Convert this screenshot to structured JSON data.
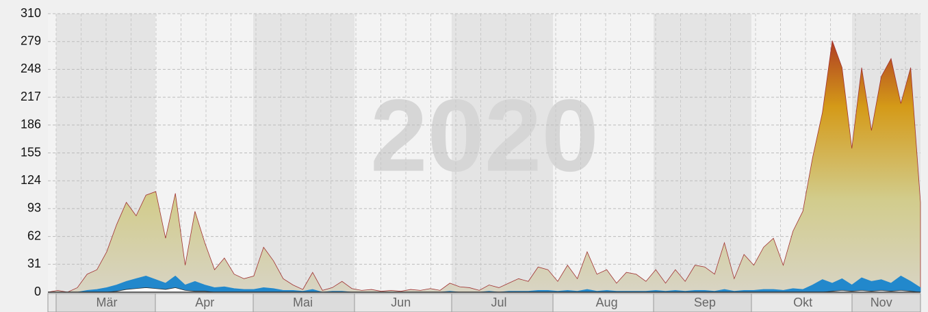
{
  "chart_data": {
    "type": "area",
    "watermark": "2020",
    "categories": [
      null,
      null,
      null,
      null,
      null,
      null,
      "Mär",
      null,
      null,
      null,
      null,
      null,
      null,
      null,
      null,
      null,
      "Apr",
      null,
      null,
      null,
      null,
      null,
      null,
      null,
      null,
      null,
      "Mai",
      null,
      null,
      null,
      null,
      null,
      null,
      null,
      null,
      null,
      "Jun",
      null,
      null,
      null,
      null,
      null,
      null,
      null,
      null,
      null,
      "Jul",
      null,
      null,
      null,
      null,
      null,
      null,
      null,
      null,
      null,
      null,
      "Aug",
      null,
      null,
      null,
      null,
      null,
      null,
      null,
      null,
      null,
      "Sep",
      null,
      null,
      null,
      null,
      null,
      null,
      null,
      null,
      null,
      "Okt",
      null,
      null,
      null,
      null,
      null,
      null,
      null,
      "Nov",
      null,
      null,
      null,
      null
    ],
    "series": [
      {
        "color": "#a03030",
        "fill": [
          "#d8d4c4",
          "#d2cc8c",
          "#d49a18",
          "#a01828"
        ],
        "values": [
          0,
          2,
          0,
          5,
          20,
          25,
          45,
          75,
          100,
          85,
          108,
          112,
          60,
          110,
          30,
          90,
          55,
          25,
          38,
          20,
          15,
          18,
          50,
          35,
          15,
          8,
          3,
          22,
          2,
          5,
          12,
          4,
          2,
          3,
          1,
          2,
          1,
          3,
          2,
          4,
          2,
          10,
          6,
          5,
          2,
          8,
          5,
          10,
          15,
          12,
          28,
          25,
          12,
          30,
          15,
          45,
          20,
          25,
          10,
          22,
          20,
          12,
          25,
          10,
          25,
          12,
          30,
          28,
          20,
          55,
          15,
          42,
          30,
          50,
          60,
          30,
          68,
          90,
          150,
          200,
          280,
          250,
          160,
          250,
          180,
          240,
          260,
          210,
          250,
          100
        ]
      },
      {
        "color": "#2288cc",
        "fill": [
          "#2288cc"
        ],
        "values": [
          0,
          0,
          0,
          0,
          2,
          3,
          5,
          8,
          12,
          15,
          18,
          14,
          10,
          18,
          8,
          12,
          8,
          5,
          6,
          4,
          3,
          3,
          5,
          4,
          2,
          2,
          1,
          3,
          0,
          1,
          1,
          0,
          0,
          0,
          0,
          0,
          0,
          0,
          0,
          0,
          0,
          1,
          0,
          0,
          0,
          1,
          0,
          1,
          1,
          1,
          2,
          2,
          1,
          2,
          1,
          3,
          1,
          2,
          1,
          1,
          1,
          1,
          2,
          1,
          2,
          1,
          2,
          2,
          1,
          3,
          1,
          2,
          2,
          3,
          3,
          2,
          4,
          3,
          8,
          14,
          10,
          15,
          8,
          16,
          12,
          14,
          10,
          18,
          12,
          5
        ]
      },
      {
        "color": "#333333",
        "fill": [
          "#ffffff"
        ],
        "values": [
          0,
          0,
          0,
          0,
          0,
          0,
          0,
          1,
          3,
          4,
          5,
          4,
          3,
          5,
          2,
          1,
          1,
          0,
          0,
          0,
          0,
          0,
          0,
          0,
          0,
          0,
          0,
          0,
          0,
          0,
          0,
          0,
          0,
          0,
          0,
          0,
          0,
          0,
          0,
          0,
          0,
          0,
          0,
          0,
          0,
          0,
          0,
          0,
          0,
          0,
          0,
          0,
          0,
          0,
          0,
          0,
          0,
          0,
          0,
          0,
          0,
          0,
          0,
          0,
          0,
          0,
          0,
          0,
          0,
          0,
          0,
          0,
          0,
          0,
          0,
          0,
          0,
          0,
          0,
          0,
          1,
          2,
          1,
          2,
          1,
          2,
          1,
          2,
          1,
          0
        ]
      }
    ],
    "ylim": [
      0,
      310
    ],
    "yticks": [
      0,
      31,
      62,
      93,
      124,
      155,
      186,
      217,
      248,
      279,
      310
    ],
    "grid": true
  }
}
